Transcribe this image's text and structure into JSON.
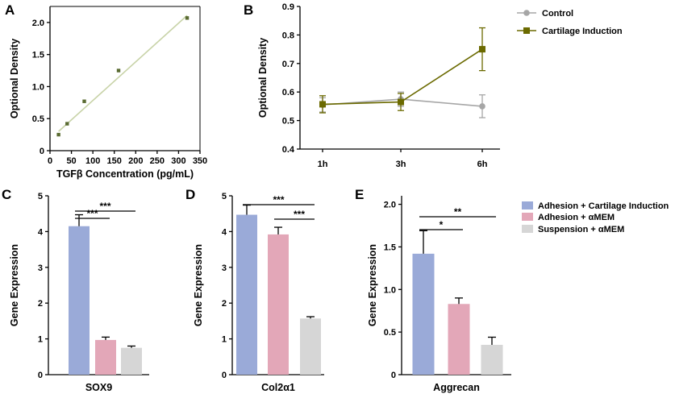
{
  "colors": {
    "std_line": "#c8d3a8",
    "std_point": "#5a6b32",
    "control": "#a6a6a6",
    "cartilage": "#6b6a00",
    "bar_adhesion_ci": "#9aaad8",
    "bar_adhesion_amem": "#e3a7b8",
    "bar_suspension_amem": "#d6d6d6"
  },
  "chart_data": [
    {
      "panel": "A",
      "type": "scatter",
      "xlabel": "TGFβ Concentration (pg/mL)",
      "ylabel": "Optional Density",
      "xlim": [
        0,
        350
      ],
      "ylim": [
        0,
        2.25
      ],
      "xticks": [
        "0",
        "50",
        "100",
        "150",
        "200",
        "250",
        "300",
        "350"
      ],
      "yticks": [
        "0",
        "0.5",
        "1.0",
        "1.5",
        "2.0"
      ],
      "x": [
        20,
        40,
        80,
        160,
        320
      ],
      "y": [
        0.25,
        0.42,
        0.77,
        1.25,
        2.07
      ],
      "fit_line": {
        "x": [
          20,
          320
        ],
        "y": [
          0.3,
          2.11
        ]
      }
    },
    {
      "panel": "B",
      "type": "line",
      "ylabel": "Optional Density",
      "categories": [
        "1h",
        "3h",
        "6h"
      ],
      "ylim": [
        0.4,
        0.9
      ],
      "yticks": [
        "0.4",
        "0.5",
        "0.6",
        "0.7",
        "0.8",
        "0.9"
      ],
      "series": [
        {
          "name": "Control",
          "values": [
            0.555,
            0.575,
            0.55
          ],
          "errors": [
            0.025,
            0.025,
            0.04
          ]
        },
        {
          "name": "Cartilage Induction",
          "values": [
            0.557,
            0.565,
            0.75
          ],
          "errors": [
            0.03,
            0.03,
            0.075
          ]
        }
      ]
    },
    {
      "panel": "C",
      "type": "bar",
      "title": "SOX9",
      "ylabel": "Gene Expression",
      "ylim": [
        0,
        5
      ],
      "yticks": [
        "0",
        "1",
        "2",
        "3",
        "4",
        "5"
      ],
      "categories": [
        "Adhesion + Cartilage Induction",
        "Adhesion + αMEM",
        "Suspension + αMEM"
      ],
      "values": [
        4.15,
        0.97,
        0.75
      ],
      "errors": [
        0.32,
        0.08,
        0.05
      ],
      "significance": [
        {
          "from": 0,
          "to": 1,
          "label": "***"
        },
        {
          "from": 0,
          "to": 2,
          "label": "***"
        }
      ]
    },
    {
      "panel": "D",
      "type": "bar",
      "title": "Col2α1",
      "ylabel": "Gene Expression",
      "ylim": [
        0,
        5
      ],
      "yticks": [
        "0",
        "1",
        "2",
        "3",
        "4",
        "5"
      ],
      "categories": [
        "Adhesion + Cartilage Induction",
        "Adhesion + αMEM",
        "Suspension + αMEM"
      ],
      "values": [
        4.47,
        3.92,
        1.57
      ],
      "errors": [
        0.27,
        0.2,
        0.05
      ],
      "significance": [
        {
          "from": 0,
          "to": 2,
          "label": "***"
        },
        {
          "from": 1,
          "to": 2,
          "label": "***"
        }
      ]
    },
    {
      "panel": "E",
      "type": "bar",
      "title": "Aggrecan",
      "ylabel": "Gene Expression",
      "ylim": [
        0,
        2.1
      ],
      "yticks": [
        "0",
        "0.5",
        "1.0",
        "1.5",
        "2.0"
      ],
      "categories": [
        "Adhesion + Cartilage Induction",
        "Adhesion + αMEM",
        "Suspension + αMEM"
      ],
      "values": [
        1.42,
        0.83,
        0.35
      ],
      "errors": [
        0.27,
        0.07,
        0.09
      ],
      "significance": [
        {
          "from": 0,
          "to": 1,
          "label": "*"
        },
        {
          "from": 0,
          "to": 2,
          "label": "**"
        }
      ]
    }
  ],
  "legend_bars": [
    "Adhesion + Cartilage Induction",
    "Adhesion + αMEM",
    "Suspension + αMEM"
  ]
}
